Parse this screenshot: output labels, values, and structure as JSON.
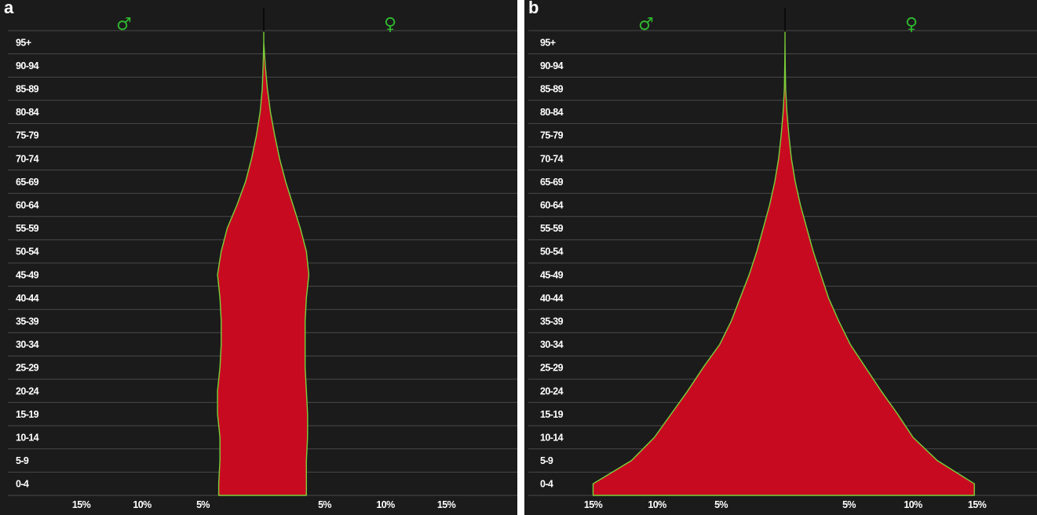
{
  "colors": {
    "background": "#1b1b1b",
    "gridline": "#4a4a4a",
    "fill": "#c80a20",
    "outline": "#7ccf3a",
    "symbol": "#2fb52f",
    "text": "#ffffff"
  },
  "chart_data": [
    {
      "panel": "a",
      "type": "area",
      "orientation": "population-pyramid",
      "male_symbol": "♂",
      "female_symbol": "♀",
      "age_groups": [
        "0-4",
        "5-9",
        "10-14",
        "15-19",
        "20-24",
        "25-29",
        "30-34",
        "35-39",
        "40-44",
        "45-49",
        "50-54",
        "55-59",
        "60-64",
        "65-69",
        "70-74",
        "75-79",
        "80-84",
        "85-89",
        "90-94",
        "95+"
      ],
      "x_tick_labels_left": [
        "15%",
        "10%",
        "5%"
      ],
      "x_tick_labels_right": [
        "5%",
        "10%",
        "15%"
      ],
      "xlim": [
        -17.5,
        17.5
      ],
      "grid": true,
      "series": [
        {
          "sex": "male",
          "values": [
            3.7,
            3.6,
            3.6,
            3.8,
            3.8,
            3.6,
            3.5,
            3.5,
            3.6,
            3.8,
            3.5,
            3.0,
            2.2,
            1.5,
            1.0,
            0.6,
            0.3,
            0.12,
            0.05,
            0.0
          ]
        },
        {
          "sex": "female",
          "values": [
            3.5,
            3.5,
            3.6,
            3.6,
            3.5,
            3.4,
            3.4,
            3.4,
            3.5,
            3.7,
            3.5,
            3.0,
            2.4,
            1.8,
            1.3,
            0.9,
            0.55,
            0.3,
            0.12,
            0.0
          ]
        }
      ]
    },
    {
      "panel": "b",
      "type": "area",
      "orientation": "population-pyramid",
      "male_symbol": "♂",
      "female_symbol": "♀",
      "age_groups": [
        "0-4",
        "5-9",
        "10-14",
        "15-19",
        "20-24",
        "25-29",
        "30-34",
        "35-39",
        "40-44",
        "45-49",
        "50-54",
        "55-59",
        "60-64",
        "65-69",
        "70-74",
        "75-79",
        "80-84",
        "85-89",
        "90-94",
        "95+"
      ],
      "x_tick_labels_left": [
        "15%",
        "10%",
        "5%"
      ],
      "x_tick_labels_right": [
        "5%",
        "10%",
        "15%"
      ],
      "xlim": [
        -17.5,
        17.5
      ],
      "grid": true,
      "series": [
        {
          "sex": "male",
          "values": [
            15.0,
            12.0,
            10.2,
            8.9,
            7.6,
            6.4,
            5.1,
            4.2,
            3.5,
            2.8,
            2.2,
            1.7,
            1.2,
            0.8,
            0.5,
            0.3,
            0.15,
            0.05,
            0.02,
            0.0
          ]
        },
        {
          "sex": "female",
          "values": [
            14.8,
            11.9,
            10.0,
            8.8,
            7.5,
            6.3,
            5.1,
            4.2,
            3.4,
            2.8,
            2.2,
            1.7,
            1.2,
            0.8,
            0.5,
            0.3,
            0.15,
            0.05,
            0.02,
            0.0
          ]
        }
      ]
    }
  ]
}
